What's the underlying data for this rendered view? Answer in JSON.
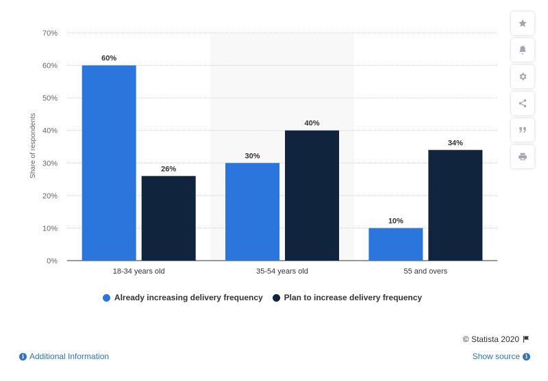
{
  "chart_data": {
    "type": "bar",
    "categories": [
      "18-34 years old",
      "35-54 years old",
      "55 and overs"
    ],
    "series": [
      {
        "name": "Already increasing delivery frequency",
        "values": [
          60,
          30,
          10
        ],
        "color": "#2a76dd"
      },
      {
        "name": "Plan to increase delivery frequency",
        "values": [
          26,
          40,
          34
        ],
        "color": "#10243e"
      }
    ],
    "ylabel": "Share of respondents",
    "ylim": [
      0,
      70
    ],
    "yticks": [
      "0%",
      "10%",
      "20%",
      "30%",
      "40%",
      "50%",
      "60%",
      "70%"
    ],
    "value_suffix": "%",
    "grid": true,
    "legend_position": "bottom",
    "highlight_category_index": 1
  },
  "tools": [
    {
      "name": "star-icon"
    },
    {
      "name": "bell-icon"
    },
    {
      "name": "gear-icon"
    },
    {
      "name": "share-icon"
    },
    {
      "name": "quote-icon"
    },
    {
      "name": "print-icon"
    }
  ],
  "footer": {
    "copyright": "© Statista 2020",
    "additional_info": "Additional Information",
    "show_source": "Show source"
  }
}
